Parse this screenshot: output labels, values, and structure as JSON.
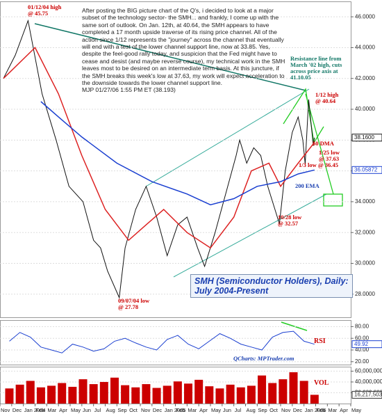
{
  "chart_data": [
    {
      "type": "line",
      "commentary": "After posting the BIG picture chart of the Q's, i decided to look at a major subset of the technology sector- the SMH... and frankly, I come up with the same sort of outlook. On Jan. 12th, at 40.64, the SMH appears to have completed a 17 month upside traverse of its rising price channel. All of the action since 1/12 represents the \"journey\" across the channel that eventually will end with a test of the lower channel support line, now at 33.85. Yes, despite the feel-good rally today, and suspicion that the Fed might have to cease and desist (and maybe reverse course), my technical work in the SMH leaves most to be desired on an intermediate term basis. At this juncture, if the SMH breaks this week's low at 37.63, my work will expect acceleration to the downside towards the lower channel support line.",
      "signature": "MJP 01/27/06  1:55 PM ET (38.193)",
      "title": "SMH (Semiconductor Holders), Daily:\nJuly 2004-Present",
      "annotations": [
        {
          "text": "01/12/04 high\n@ 45.75",
          "color": "#cc0000"
        },
        {
          "text": "Resistance line from\nMarch '02 high, cuts\nacross price axis at\n41.10.05",
          "color": "#117766"
        },
        {
          "text": "1/12 high\n@ 40.64",
          "color": "#cc0000"
        },
        {
          "text": "50 DMA",
          "color": "#cc0000"
        },
        {
          "text": "1/25 low\n@ 37.63",
          "color": "#cc0000"
        },
        {
          "text": "1/3 low @ 36.45",
          "color": "#cc0000"
        },
        {
          "text": "200 EMA",
          "color": "#1a3fb0"
        },
        {
          "text": "10/28 low\n@ 32.57",
          "color": "#cc0000"
        },
        {
          "text": "09/07/04 low\n@ 27.78",
          "color": "#cc0000"
        }
      ],
      "xlim": [
        0,
        30
      ],
      "ylim": [
        26.5,
        47
      ],
      "yticks": [
        {
          "value": 28,
          "label": "28.0000"
        },
        {
          "value": 30,
          "label": "30.0000"
        },
        {
          "value": 32,
          "label": "32.0000"
        },
        {
          "value": 34,
          "label": "34.0000"
        },
        {
          "value": 36,
          "label": "36.0000"
        },
        {
          "value": 38,
          "label": "38.0000"
        },
        {
          "value": 40,
          "label": "40.0000"
        },
        {
          "value": 42,
          "label": "42.0000"
        },
        {
          "value": 44,
          "label": "44.0000"
        },
        {
          "value": 46,
          "label": "46.0000"
        }
      ],
      "xticks": [
        {
          "value": 0,
          "label": "Nov"
        },
        {
          "value": 1,
          "label": "Dec"
        },
        {
          "value": 2,
          "label": "Jan 2004"
        },
        {
          "value": 3,
          "label": "Feb"
        },
        {
          "value": 4,
          "label": "Mar"
        },
        {
          "value": 5,
          "label": "Apr"
        },
        {
          "value": 6,
          "label": "May"
        },
        {
          "value": 7,
          "label": "Jun"
        },
        {
          "value": 8,
          "label": "Jul"
        },
        {
          "value": 9,
          "label": "Aug"
        },
        {
          "value": 10,
          "label": "Sep"
        },
        {
          "value": 11,
          "label": "Oct"
        },
        {
          "value": 12,
          "label": "Nov"
        },
        {
          "value": 13,
          "label": "Dec"
        },
        {
          "value": 14,
          "label": "Jan 2005"
        },
        {
          "value": 15,
          "label": "Feb"
        },
        {
          "value": 16,
          "label": "Mar"
        },
        {
          "value": 17,
          "label": "Apr"
        },
        {
          "value": 18,
          "label": "May"
        },
        {
          "value": 19,
          "label": "Jun"
        },
        {
          "value": 20,
          "label": "Jul"
        },
        {
          "value": 21,
          "label": "Aug"
        },
        {
          "value": 22,
          "label": "Sep"
        },
        {
          "value": 23,
          "label": "Oct"
        },
        {
          "value": 24,
          "label": "Nov"
        },
        {
          "value": 25,
          "label": "Dec"
        },
        {
          "value": 26,
          "label": "Jan 2006"
        },
        {
          "value": 27,
          "label": "Feb"
        },
        {
          "value": 28,
          "label": "Mar"
        },
        {
          "value": 29,
          "label": "Apr"
        },
        {
          "value": 30,
          "label": "May"
        }
      ],
      "series": [
        {
          "name": "SMH",
          "color": "#111111",
          "last_label": "38.1600",
          "x": [
            0.3,
            1.3,
            2.4,
            3.6,
            4.8,
            5.9,
            7.1,
            8.0,
            8.6,
            9.2,
            10.2,
            10.7,
            11.6,
            12.5,
            13.4,
            14.3,
            15.2,
            16.0,
            16.9,
            17.5,
            18.4,
            19.3,
            20.2,
            20.5,
            21.1,
            21.7,
            22.3,
            22.9,
            23.9,
            24.4,
            25.0,
            25.5,
            25.9,
            26.1,
            26.4,
            26.8,
            26.9
          ],
          "values": [
            42,
            43.5,
            45.75,
            41,
            38,
            35,
            34,
            31.5,
            31,
            29.5,
            27.78,
            31,
            33.5,
            35,
            33,
            30.5,
            32.5,
            33,
            31,
            29.8,
            32,
            34.5,
            37,
            38,
            36.5,
            37.5,
            37,
            35,
            32.57,
            36,
            38.5,
            39.5,
            38,
            36.45,
            40.64,
            37.63,
            38.16
          ]
        },
        {
          "name": "50 DMA",
          "color": "#dd2222",
          "x": [
            0.3,
            3,
            5,
            7,
            9,
            11,
            12.5,
            14,
            16,
            18,
            20,
            21.5,
            23,
            24,
            25.5,
            26.9
          ],
          "values": [
            42,
            44,
            41,
            37,
            33.5,
            31.5,
            32.5,
            33.5,
            32,
            31,
            33,
            36,
            36.5,
            35,
            36.5,
            37.85
          ]
        },
        {
          "name": "200 EMA",
          "color": "#1a3fd0",
          "last_label": "36.05872",
          "x": [
            3.5,
            5,
            7,
            10,
            13,
            16,
            18,
            20,
            22,
            24,
            25.5,
            26.9
          ],
          "values": [
            40.5,
            39.5,
            38.2,
            36.5,
            35.3,
            34.5,
            33.8,
            34.2,
            35,
            35.3,
            35.8,
            36.05872
          ]
        }
      ]
    },
    {
      "type": "line",
      "label": "RSI",
      "label_color": "#cc0000",
      "credit": "QCharts: MPTrader.com",
      "credit_color": "#1a3fb0",
      "xlim": [
        0,
        30
      ],
      "ylim": [
        15,
        90
      ],
      "yticks": [
        {
          "value": 20,
          "label": "20.00"
        },
        {
          "value": 40,
          "label": "40.00"
        },
        {
          "value": 60,
          "label": "60.00"
        },
        {
          "value": 80,
          "label": "80.00"
        }
      ],
      "series": [
        {
          "name": "RSI",
          "color": "#1a3fd0",
          "last_label": "49.92",
          "x": [
            0.8,
            1.7,
            2.6,
            3.5,
            4.4,
            5.3,
            6.2,
            7.1,
            8.0,
            8.9,
            9.8,
            10.7,
            11.6,
            12.5,
            13.4,
            14.3,
            15.2,
            16.1,
            17.0,
            17.9,
            18.8,
            19.7,
            20.6,
            21.5,
            22.4,
            23.3,
            24.2,
            25.1,
            26.0,
            26.9
          ],
          "values": [
            55,
            70,
            62,
            45,
            40,
            35,
            50,
            45,
            38,
            42,
            55,
            60,
            52,
            45,
            40,
            58,
            65,
            50,
            42,
            55,
            68,
            60,
            50,
            45,
            40,
            62,
            70,
            72,
            55,
            49.92
          ]
        }
      ]
    },
    {
      "type": "bar",
      "label": "VOL",
      "label_color": "#cc0000",
      "color": "#cc0000",
      "xlim": [
        0,
        30
      ],
      "ylim": [
        0,
        67000000
      ],
      "yticks": [
        {
          "value": 20000000,
          "label": "20,000,000"
        },
        {
          "value": 40000000,
          "label": "40,000,000"
        },
        {
          "value": 60000000,
          "label": "60,000,000"
        }
      ],
      "last_label": "16,217,503",
      "x": [
        0.8,
        1.7,
        2.6,
        3.5,
        4.4,
        5.3,
        6.2,
        7.1,
        8.0,
        8.9,
        9.8,
        10.7,
        11.6,
        12.5,
        13.4,
        14.3,
        15.2,
        16.1,
        17.0,
        17.9,
        18.8,
        19.7,
        20.6,
        21.5,
        22.4,
        23.3,
        24.2,
        25.1,
        26.0,
        26.9
      ],
      "values": [
        28000000,
        35000000,
        42000000,
        30000000,
        33000000,
        38000000,
        31000000,
        45000000,
        36000000,
        40000000,
        48000000,
        34000000,
        30000000,
        36000000,
        29000000,
        33000000,
        41000000,
        37000000,
        44000000,
        32000000,
        28000000,
        35000000,
        30000000,
        33000000,
        52000000,
        38000000,
        45000000,
        58000000,
        42000000,
        16217503
      ]
    }
  ]
}
